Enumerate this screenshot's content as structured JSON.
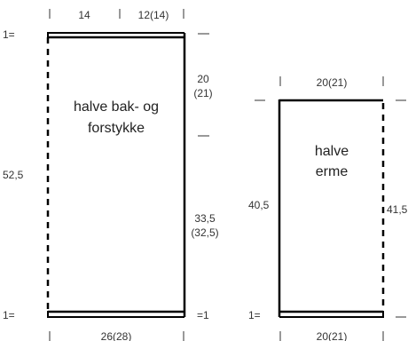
{
  "body_piece": {
    "title_line1": "halve bak- og",
    "title_line2": "forstykke",
    "top_left_width": "14",
    "top_right_width": "12(14)",
    "bottom_width": "26(28)",
    "left_height": "52,5",
    "right_upper_line1": "20",
    "right_upper_line2": "(21)",
    "right_lower_line1": "33,5",
    "right_lower_line2": "(32,5)",
    "rib_left_top": "1=",
    "rib_left_bottom": "1=",
    "rib_right_bottom": "=1"
  },
  "sleeve_piece": {
    "title_line1": "halve",
    "title_line2": "erme",
    "top_width": "20(21)",
    "bottom_width": "20(21)",
    "left_height": "40,5",
    "right_height": "41,5",
    "rib_left_bottom": "1="
  },
  "colors": {
    "line": "#000000",
    "text": "#333333"
  }
}
